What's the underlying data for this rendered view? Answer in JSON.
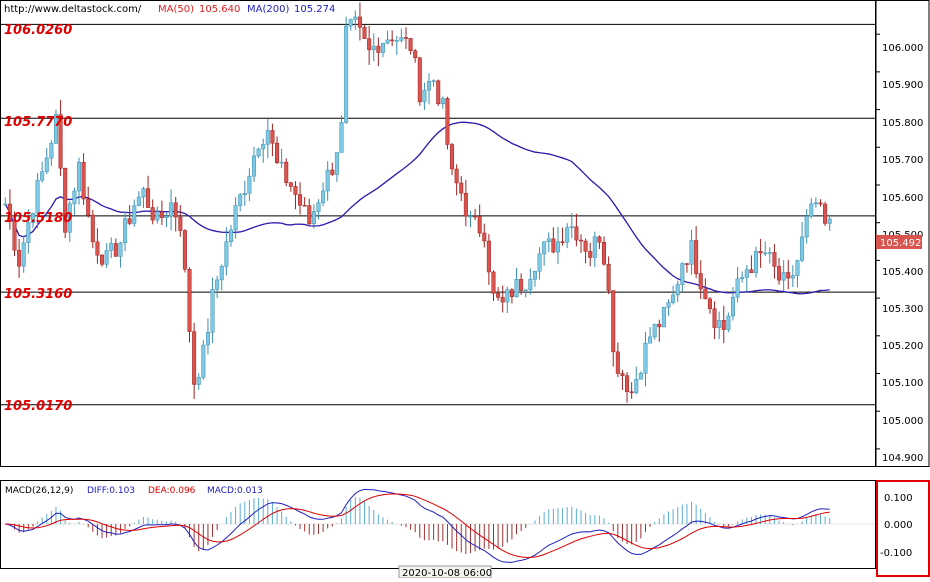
{
  "header": {
    "url": "http://www.deltastock.com/",
    "ma50_label": "MA(50)",
    "ma50_value": "105.640",
    "ma200_label": "MA(200)",
    "ma200_value": "105.274"
  },
  "levels": [
    {
      "label": "106.0260",
      "value": 106.026
    },
    {
      "label": "105.7770",
      "value": 105.777
    },
    {
      "label": "105.5180",
      "value": 105.518
    },
    {
      "label": "105.3160",
      "value": 105.316
    },
    {
      "label": "105.0170",
      "value": 105.017
    }
  ],
  "price_axis": {
    "ticks": [
      "106.000",
      "105.900",
      "105.800",
      "105.700",
      "105.600",
      "105.500",
      "105.400",
      "105.300",
      "105.200",
      "105.100",
      "105.000",
      "104.900"
    ],
    "current_label": "105.492",
    "current_value": 105.492
  },
  "macd": {
    "title": "MACD(26,12,9)",
    "diff_label": "DIFF:0.103",
    "dea_label": "DEA:0.096",
    "macd_label": "MACD:0.013",
    "ticks": [
      "0.100",
      "0.000",
      "-0.100"
    ]
  },
  "time_axis": {
    "label": "2020-10-08 06:00"
  },
  "colors": {
    "bull": "#7ec8e3",
    "bear": "#d9534f",
    "ma50": "#e02020",
    "ma200": "#2020c0",
    "level_label": "#e00000",
    "macd_box": "#e00000"
  },
  "chart_data": {
    "type": "candlestick",
    "y_range": [
      104.86,
      106.08
    ],
    "ma_periods": [
      50,
      200
    ],
    "close_path": [
      [
        0,
        105.55
      ],
      [
        3,
        105.4
      ],
      [
        6,
        105.55
      ],
      [
        8,
        105.63
      ],
      [
        11,
        105.77
      ],
      [
        13,
        105.5
      ],
      [
        16,
        105.65
      ],
      [
        19,
        105.45
      ],
      [
        22,
        105.4
      ],
      [
        25,
        105.45
      ],
      [
        28,
        105.55
      ],
      [
        30,
        105.58
      ],
      [
        33,
        105.5
      ],
      [
        36,
        105.55
      ],
      [
        38,
        105.5
      ],
      [
        41,
        105.08
      ],
      [
        43,
        105.15
      ],
      [
        45,
        105.3
      ],
      [
        47,
        105.4
      ],
      [
        50,
        105.53
      ],
      [
        52,
        105.6
      ],
      [
        55,
        105.72
      ],
      [
        57,
        105.75
      ],
      [
        59,
        105.65
      ],
      [
        62,
        105.6
      ],
      [
        64,
        105.55
      ],
      [
        66,
        105.5
      ],
      [
        69,
        105.6
      ],
      [
        71,
        105.65
      ],
      [
        73,
        105.75
      ],
      [
        74,
        106.0
      ],
      [
        76,
        106.02
      ],
      [
        79,
        105.95
      ],
      [
        81,
        105.98
      ],
      [
        84,
        106.0
      ],
      [
        86,
        105.98
      ],
      [
        88,
        105.97
      ],
      [
        90,
        105.85
      ],
      [
        93,
        105.88
      ],
      [
        95,
        105.8
      ],
      [
        97,
        105.62
      ],
      [
        99,
        105.58
      ],
      [
        101,
        105.5
      ],
      [
        104,
        105.48
      ],
      [
        106,
        105.3
      ],
      [
        108,
        105.28
      ],
      [
        110,
        105.32
      ],
      [
        113,
        105.35
      ],
      [
        115,
        105.4
      ],
      [
        117,
        105.43
      ],
      [
        120,
        105.45
      ],
      [
        122,
        105.5
      ],
      [
        124,
        105.48
      ],
      [
        127,
        105.42
      ],
      [
        129,
        105.47
      ],
      [
        131,
        105.35
      ],
      [
        132,
        105.15
      ],
      [
        134,
        105.1
      ],
      [
        136,
        105.05
      ],
      [
        138,
        105.13
      ],
      [
        140,
        105.2
      ],
      [
        143,
        105.25
      ],
      [
        145,
        105.3
      ],
      [
        147,
        105.4
      ],
      [
        149,
        105.43
      ],
      [
        151,
        105.35
      ],
      [
        154,
        105.25
      ],
      [
        156,
        105.22
      ],
      [
        158,
        105.3
      ],
      [
        161,
        105.38
      ],
      [
        163,
        105.4
      ],
      [
        165,
        105.42
      ],
      [
        168,
        105.35
      ],
      [
        170,
        105.33
      ],
      [
        172,
        105.4
      ],
      [
        174,
        105.5
      ],
      [
        176,
        105.55
      ],
      [
        178,
        105.49
      ]
    ]
  }
}
